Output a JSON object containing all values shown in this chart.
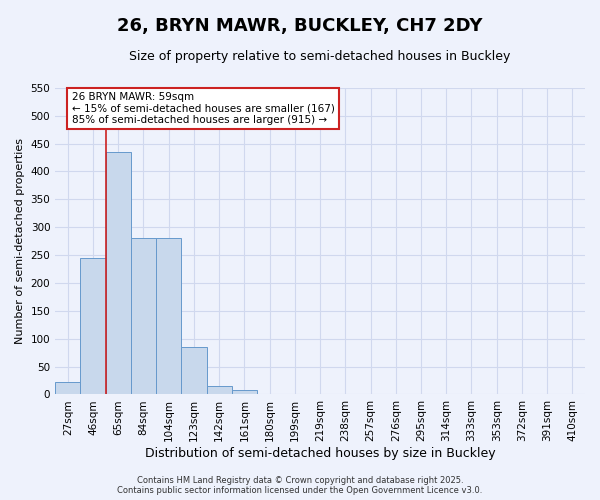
{
  "title": "26, BRYN MAWR, BUCKLEY, CH7 2DY",
  "subtitle": "Size of property relative to semi-detached houses in Buckley",
  "xlabel": "Distribution of semi-detached houses by size in Buckley",
  "ylabel": "Number of semi-detached properties",
  "bins": [
    "27sqm",
    "46sqm",
    "65sqm",
    "84sqm",
    "104sqm",
    "123sqm",
    "142sqm",
    "161sqm",
    "180sqm",
    "199sqm",
    "219sqm",
    "238sqm",
    "257sqm",
    "276sqm",
    "295sqm",
    "314sqm",
    "333sqm",
    "353sqm",
    "372sqm",
    "391sqm",
    "410sqm"
  ],
  "values": [
    22,
    245,
    435,
    280,
    280,
    85,
    15,
    8,
    1,
    0,
    1,
    0,
    0,
    0,
    0,
    0,
    0,
    0,
    0,
    1,
    1
  ],
  "bar_color": "#c8d8ec",
  "bar_edge_color": "#6699cc",
  "grid_color": "#d0d8ee",
  "background_color": "#eef2fc",
  "vline_x_idx": 1.5,
  "vline_color": "#cc2222",
  "annotation_line1": "26 BRYN MAWR: 59sqm",
  "annotation_line2": "← 15% of semi-detached houses are smaller (167)",
  "annotation_line3": "85% of semi-detached houses are larger (915) →",
  "annotation_box_color": "#ffffff",
  "annotation_border_color": "#cc2222",
  "footer1": "Contains HM Land Registry data © Crown copyright and database right 2025.",
  "footer2": "Contains public sector information licensed under the Open Government Licence v3.0.",
  "ylim": [
    0,
    550
  ],
  "yticks": [
    0,
    50,
    100,
    150,
    200,
    250,
    300,
    350,
    400,
    450,
    500,
    550
  ],
  "title_fontsize": 13,
  "subtitle_fontsize": 9,
  "ylabel_fontsize": 8,
  "xlabel_fontsize": 9,
  "tick_fontsize": 7.5
}
